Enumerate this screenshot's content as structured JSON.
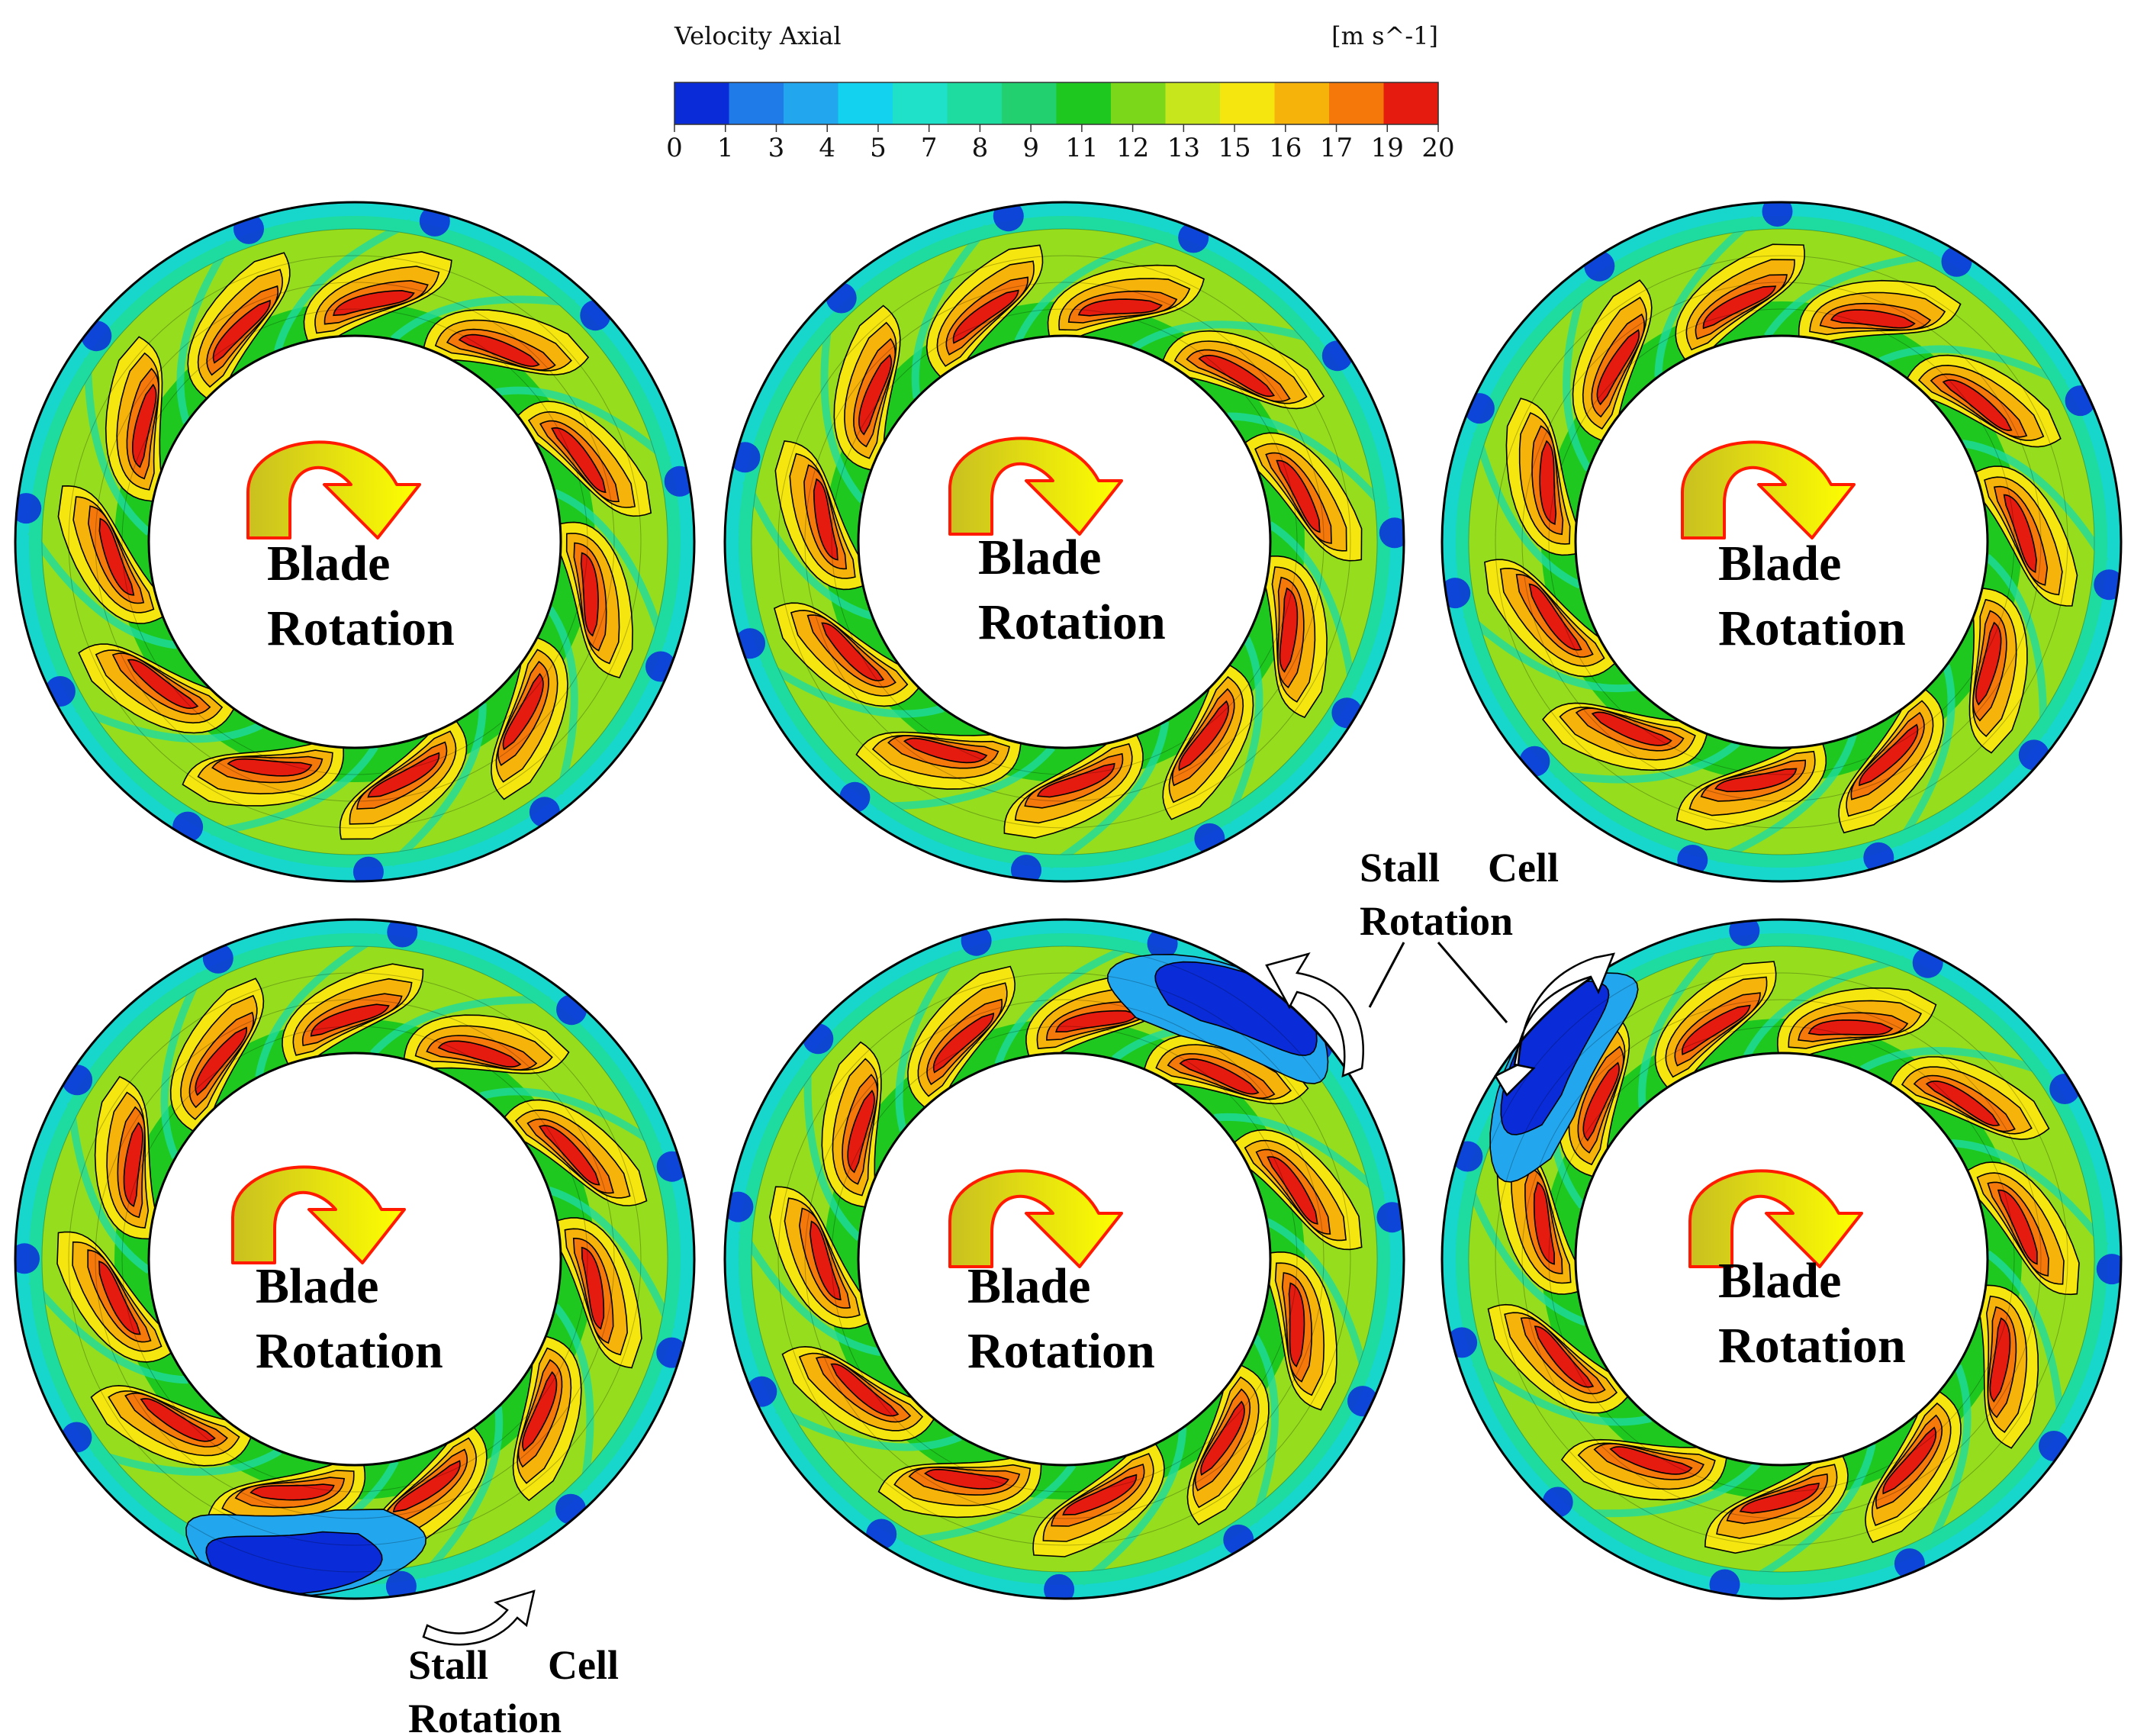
{
  "legend": {
    "title": "Velocity Axial",
    "units": "[m s^-1]",
    "ticks": [
      "0",
      "1",
      "3",
      "4",
      "5",
      "7",
      "8",
      "9",
      "11",
      "12",
      "13",
      "15",
      "16",
      "17",
      "19",
      "20"
    ],
    "colors": [
      "#0a2bd8",
      "#1e7be8",
      "#22a6ee",
      "#12d2f0",
      "#1fe0c8",
      "#1edba0",
      "#22d070",
      "#1ec81e",
      "#7bd71a",
      "#c7e61c",
      "#f4e60e",
      "#f6b40a",
      "#f5780a",
      "#e51b0f"
    ]
  },
  "contour_palette": {
    "red": "#e51b0f",
    "orange_red": "#f5780a",
    "orange": "#f6b40a",
    "yellow": "#f4e60e",
    "yellow_green": "#c7e61c",
    "green": "#1ec81e",
    "sea_green": "#1edba0",
    "cyan": "#12d2f0",
    "light_blue": "#22a6ee",
    "blue": "#0a2bd8"
  },
  "panels": [
    {
      "blade_line1": "Blade",
      "blade_line2": "Rotation"
    },
    {
      "blade_line1": "Blade",
      "blade_line2": "Rotation"
    },
    {
      "blade_line1": "Blade",
      "blade_line2": "Rotation"
    },
    {
      "blade_line1": "Blade",
      "blade_line2": "Rotation"
    },
    {
      "blade_line1": "Blade",
      "blade_line2": "Rotation"
    },
    {
      "blade_line1": "Blade",
      "blade_line2": "Rotation"
    }
  ],
  "stall_labels": {
    "top": {
      "line1": "Stall",
      "line2": "Cell",
      "line3": "Rotation"
    },
    "bottom": {
      "line1": "Stall",
      "line2": "Cell",
      "line3": "Rotation"
    }
  },
  "arrow_colors": {
    "fill_start": "#c9c020",
    "fill_end": "#ffff00",
    "stroke": "#ff1a00"
  }
}
